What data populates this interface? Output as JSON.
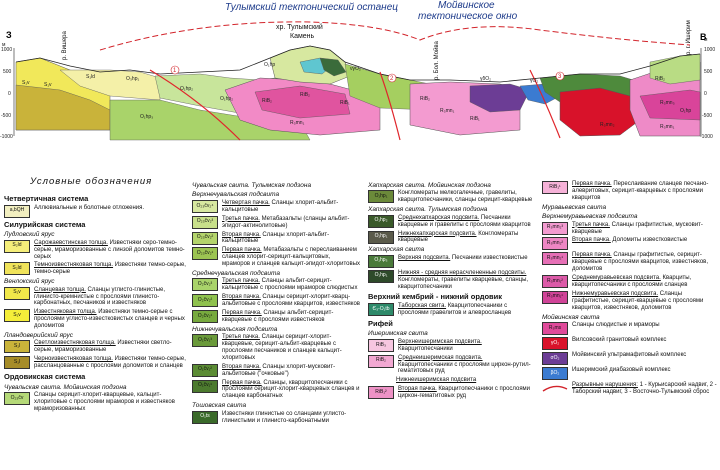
{
  "section": {
    "left_letter": "З",
    "right_letter": "В",
    "title_tulym": "Тулымский тектонический останец",
    "title_moiva": "Мойвинское",
    "title_moiva2": "тектоническое окно",
    "peak_label": "хр. Тулымский",
    "peak_label2": "Камень",
    "river_vishera": "р. Вишера",
    "river_bol_moiva": "р. Бол. Мойва",
    "river_isherim": "р. г. Ишерим",
    "scale_left": [
      "1000",
      "500",
      "0",
      "-500",
      "-1000"
    ],
    "scale_left_unit": "м",
    "scale_right": [
      "1000",
      "500",
      "0",
      "-500",
      "-1000"
    ],
    "scale_right_unit": "м",
    "fault_nums": [
      "1",
      "2",
      "3"
    ],
    "labels": [
      "S₁v",
      "S₁v",
      "S₁ld",
      "O₃hp₁",
      "O₁hp₂",
      "O₁hp₂",
      "O₁hp₃",
      "RiB₂",
      "RiB₂",
      "RiB₂",
      "RiB₂",
      "RiB₁",
      "RiB₁",
      "R₃mn₁",
      "R₃mn₁",
      "R₃mn₁",
      "R₃mn₂",
      "R₃mn₃",
      "O₁hp",
      "O₁hp",
      "γδO₂",
      "νγO₂",
      "γO₂"
    ]
  },
  "legend": {
    "title": "Условные обозначения",
    "col1": {
      "h_quat": "Четвертичная система",
      "quat": {
        "sym": "a,bQH",
        "text": "Аллювиальные и болотные отложения."
      },
      "h_silur": "Силурийская система",
      "sub_ludlov": "Лудловский ярус",
      "silur1": [
        {
          "sym": "S₂ld",
          "u": "Сарожаевстинская толща.",
          "text": " Известняки серо-темно-серые, мраморизованные с линзой доломитов темно-серых"
        },
        {
          "sym": "S₂ld",
          "u": "Темноизвестняковая толща.",
          "text": " Известняки темно-серые, темно-серые"
        }
      ],
      "sub_venlok": "Венлокский ярус",
      "silur2": [
        {
          "sym": "S₁v",
          "u": "Сланцевая толща.",
          "text": " Сланцы углисто-глинистые, глинисто-кремнистые с прослоями глинисто-карбонатных, песчаников и известняков"
        },
        {
          "sym": "S₁v",
          "u": "Известняковая толща.",
          "text": " Известняки темно-серые с прослоями углисто-известковистых сланцев и черных доломитов"
        }
      ],
      "sub_llando": "Лландоверийский ярус",
      "silur3": [
        {
          "sym": "S₁l",
          "u": "Светлоизвестняковая толща.",
          "text": " Известняки светло-серые, мраморизованные"
        },
        {
          "sym": "S₁l",
          "u": "Черноизвестняковая толща.",
          "text": " Известняки темно-серые, рассланцованные с прослоями доломитов и сланцев"
        }
      ],
      "h_ordov": "Ордовикская система",
      "sub_chuval": "Чувальская свита. Мойвинская подзона",
      "ordov": {
        "sym": "O₂₃čv",
        "text": "Сланцы серицит-хлорит-кварцевые, кальцит-хлоритовые с прослоями мраморов и известняков мраморизованных"
      }
    },
    "col2": {
      "sub_top": "Чувальская свита. Тулымская подзона",
      "sub_top2": "Верхнечувальская подсвита",
      "upper": [
        {
          "sym": "O₂₃čv₂⁴",
          "u": "Четвертая пачка.",
          "text": " Сланцы хлорит-альбит-кальцитовые"
        },
        {
          "sym": "O₂₃čv₂³",
          "u": "Третья пачка.",
          "text": " Метабазальты (сланцы альбит-эпидот-актинолитовые)"
        },
        {
          "sym": "O₂₃čv₂²",
          "u": "Вторая пачка.",
          "text": " Сланцы хлорит-альбит-кальцитовые"
        },
        {
          "sym": "O₂₃čv₂¹",
          "u": "Первая пачка.",
          "text": " Метабазальты с переслаиванием сланцев хлорит-серицит-кальцитовых, мраморов и сланцев кальцит-эпидот-хлоритовых"
        }
      ],
      "sub_mid": "Среднечувальская подсвита",
      "middle": [
        {
          "sym": "O₂čv₂³",
          "u": "Третья пачка.",
          "text": " Сланцы альбит-серицит-кальцитовые с прослоями мраморов слюдистых"
        },
        {
          "sym": "O₂čv₂²",
          "u": "Вторая пачка.",
          "text": " Сланцы серицит-хлорит-кварц-альбитовые с прослоями кварцитов, известняков"
        },
        {
          "sym": "O₂čv₂¹",
          "u": "Первая пачка.",
          "text": " Сланцы альбит-серицит-кварцевые с прослоями известняков"
        }
      ],
      "sub_low": "Нижнечувальская подсвита",
      "lower": [
        {
          "sym": "O₁čv₁³",
          "u": "Третья пачка.",
          "text": " Сланцы серицит-хлорит-кварцевые, серицит-альбит-кварцевые с прослоями песчаников и сланцев кальцит-хлоритовых"
        },
        {
          "sym": "O₁čv₁²",
          "u": "Вторая пачка.",
          "text": " Сланцы хлорит-мусковит-альбитовые (\"очковые\")"
        },
        {
          "sym": "O₁čv₁¹",
          "u": "Первая пачка.",
          "text": " Сланцы, кварцитопесчаники с прослоями серицит-хлорит-кварцевых сланцев и сланцев карбонатных"
        }
      ],
      "sub_tosh": "Тошовская свита",
      "tosh": {
        "sym": "O₁ts",
        "text": "Известняки глинистые со сланцами углисто-глинистыми и глинисто-карбонатными"
      }
    },
    "col3": {
      "sub_hapa1": "Хапхарская свита. Мойвинская подзона",
      "hapa1": {
        "sym": "O₁hp₁",
        "text": "Конгломераты мелкогалечные, гравелиты, кварцитопесчаники, сланцы серицит-кварцевые"
      },
      "sub_hapa2": "Хапхарская свита. Тулымская подзона",
      "hapa2": [
        {
          "sym": "O₁hp₂",
          "u": "Среднехапхарская подсвита.",
          "text": " Песчаники кварцевые и гравелиты с прослоями кварцитов"
        },
        {
          "sym": "O₁hp₁",
          "u": "Нижнехапхарская подсвита.",
          "text": " Конгломераты кварцевые"
        }
      ],
      "sub_hapa3": "Хапхарская свита",
      "hapa3": [
        {
          "sym": "O₁hp₃",
          "u": "Верхняя подсвита.",
          "text": " Песчаники известковистые"
        },
        {
          "sym": "O₁hp₁",
          "u": "Нижняя - средняя нерасчлененные подсвиты.",
          "text": " Конгломераты, гравелиты кварцевые, сланцы, кварцитопесчаники"
        }
      ],
      "h_camb": "Верхний кембрий - нижний ордовик",
      "camb": {
        "sym": "Є₃-O₁tb",
        "u": "Таборская свита.",
        "text": " Кварцитопесчаники с прослоями гравелитов и алевросланцев"
      },
      "h_riphe": "Рифей",
      "sub_isher": "Ишеримская свита",
      "isher": [
        {
          "sym": "RiB₃",
          "u": "Верхнеишеримская подсвита.",
          "text": " Кварцитопесчаники"
        },
        {
          "sym": "RiB₂",
          "u": "Среднеишеримская подсвита.",
          "text": " Кварцитопесчаники с прослоями циркон-рутил-гематитовых руд"
        },
        {
          "sym": "RiB₁",
          "u": "Нижнеишеримская подсвита",
          "text": ""
        },
        {
          "sym": "RiB₁²",
          "u": "Вторая пачка.",
          "text": " Кварцитопесчаники с прослоями циркон-гематитовых руд"
        }
      ]
    },
    "col4": {
      "first": {
        "sym": "RiB₁¹",
        "u": "Первая пачка.",
        "text": " Переслаивание сланцев песчано-алевритовых, серицит-кварцевых с прослоями кварцитов"
      },
      "sub_mur": "Муравьевская свита",
      "sub_mur2": "Верхнемуравьевская подсвита",
      "mur_upper": [
        {
          "sym": "R₃mn₂³",
          "u": "Третья пачка.",
          "text": " Сланцы графитистые, мусковит-кварцевые"
        },
        {
          "sym": "R₃mn₂²",
          "u": "Вторая пачка.",
          "text": " Доломиты известковистые"
        },
        {
          "sym": "R₃mn₂¹",
          "u": "Первая пачка.",
          "text": " Сланцы графитистые, серицит-кварцевые с прослоями кварцитов, известняков, доломитов"
        }
      ],
      "mur_lower": [
        {
          "sym": "R₃mn₁²",
          "u": "Среднемуравьевская подсвита.",
          "text": " Кварциты, кварцитопесчаники с прослоями сланцев"
        },
        {
          "sym": "R₃mn₁¹",
          "u": "Нижнемуравьевская подсвита.",
          "text": " Сланцы графитистые, серицит-кварцевые с прослоями кварцитов, известняков, доломитов"
        }
      ],
      "sub_moiv": "Мойвинская свита",
      "moiv": {
        "sym": "R₃ms",
        "text": "Сланцы слюдистые и мраморы"
      },
      "intrus": [
        {
          "sym": "γO₂",
          "text": "Вилсовский гранитовый комплекс"
        },
        {
          "sym": "σO₂",
          "text": "Мойвинский ультрамафитовый комплекс"
        },
        {
          "sym": "βO₂",
          "text": "Ишеримский диабазовый комплекс"
        }
      ],
      "faults": {
        "u": "Разрывные нарушения:",
        "text": " 1 - Курьисарский надвиг, 2 - Таборский надвиг, 3 - Восточно-Тулымский сброс"
      }
    }
  }
}
